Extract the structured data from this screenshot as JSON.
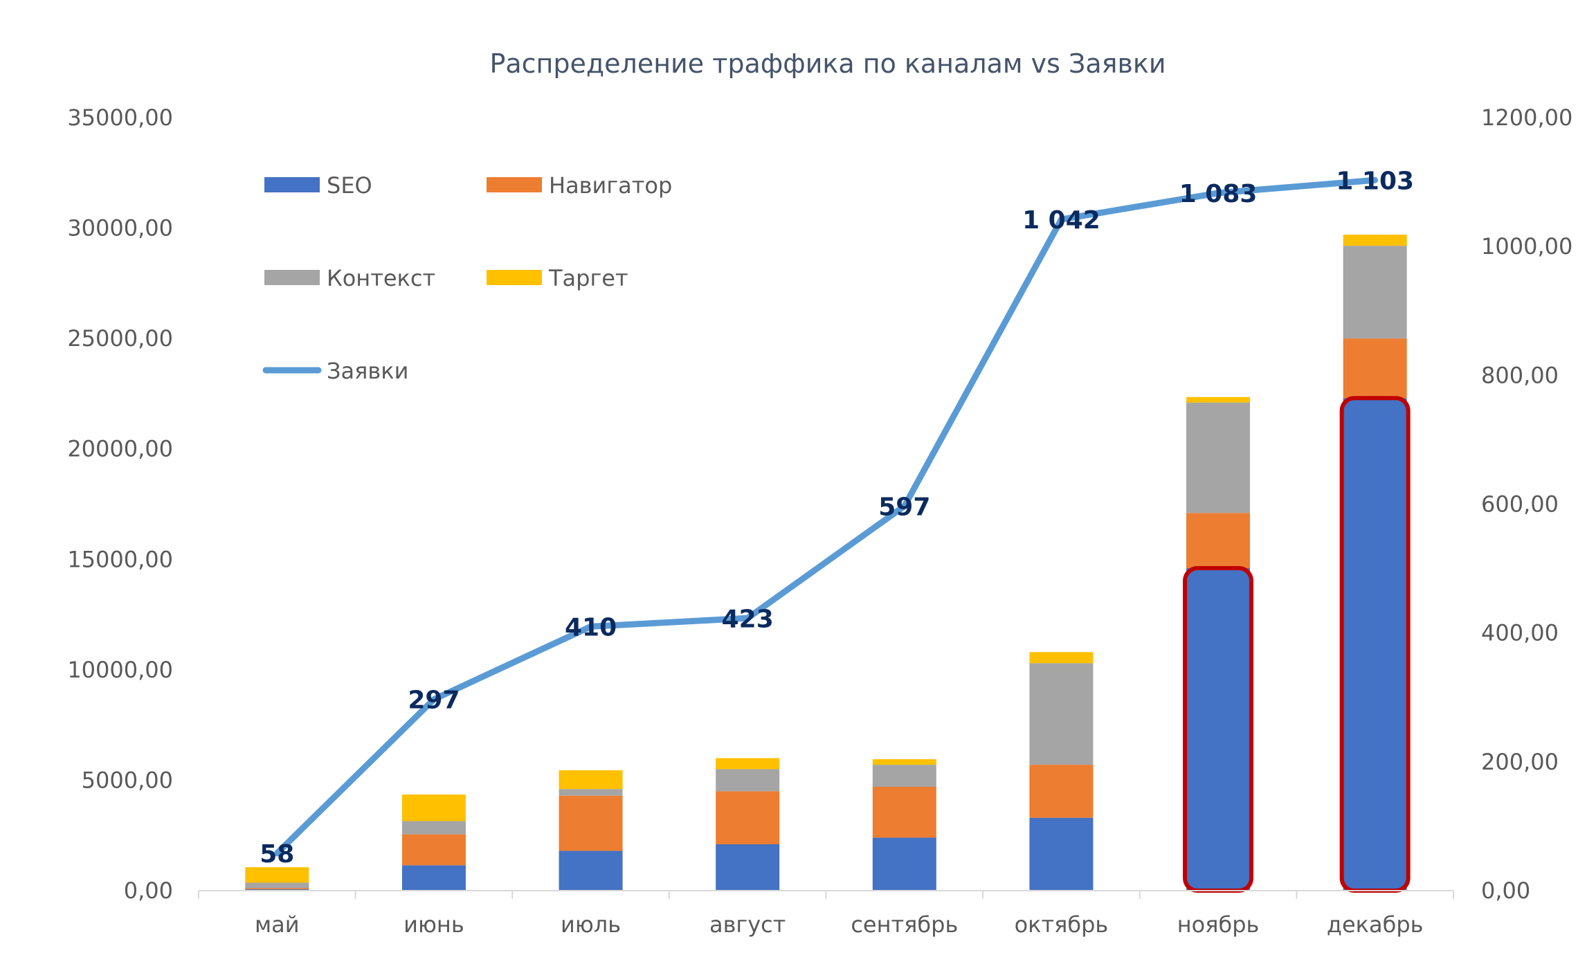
{
  "chart_data": {
    "type": "bar",
    "stacked": true,
    "title": "Распределение траффика по каналам vs Заявки",
    "categories": [
      "май",
      "июнь",
      "июль",
      "август",
      "сентябрь",
      "октябрь",
      "ноябрь",
      "декабрь"
    ],
    "series": [
      {
        "name": "SEO",
        "color": "#4472c4",
        "values": [
          60,
          1150,
          1800,
          2100,
          2400,
          3300,
          14600,
          22300
        ]
      },
      {
        "name": "Навигатор",
        "color": "#ed7d31",
        "values": [
          50,
          1400,
          2500,
          2400,
          2300,
          2400,
          2500,
          2700
        ]
      },
      {
        "name": "Контекст",
        "color": "#a5a5a5",
        "values": [
          250,
          600,
          300,
          1000,
          1000,
          4600,
          5000,
          4200
        ]
      },
      {
        "name": "Таргет",
        "color": "#ffc000",
        "values": [
          700,
          1200,
          850,
          500,
          250,
          500,
          250,
          500
        ]
      }
    ],
    "line_series": {
      "name": "Заявки",
      "color": "#5b9bd5",
      "values": [
        58,
        297,
        410,
        423,
        597,
        1042,
        1083,
        1103
      ],
      "labels": [
        "58",
        "297",
        "410",
        "423",
        "597",
        "1 042",
        "1 083",
        "1 103"
      ]
    },
    "y_left": {
      "min": 0,
      "max": 35000,
      "step": 5000,
      "tick_labels": [
        "0,00",
        "5000,00",
        "10000,00",
        "15000,00",
        "20000,00",
        "25000,00",
        "30000,00",
        "35000,00"
      ]
    },
    "y_right": {
      "min": 0,
      "max": 1200,
      "step": 200,
      "tick_labels": [
        "0,00",
        "200,00",
        "400,00",
        "600,00",
        "800,00",
        "1000,00",
        "1200,00"
      ]
    },
    "highlighted_categories": [
      "ноябрь",
      "декабрь"
    ],
    "highlight_color": "#c00000",
    "grid": false,
    "legend_position": "top-left"
  }
}
